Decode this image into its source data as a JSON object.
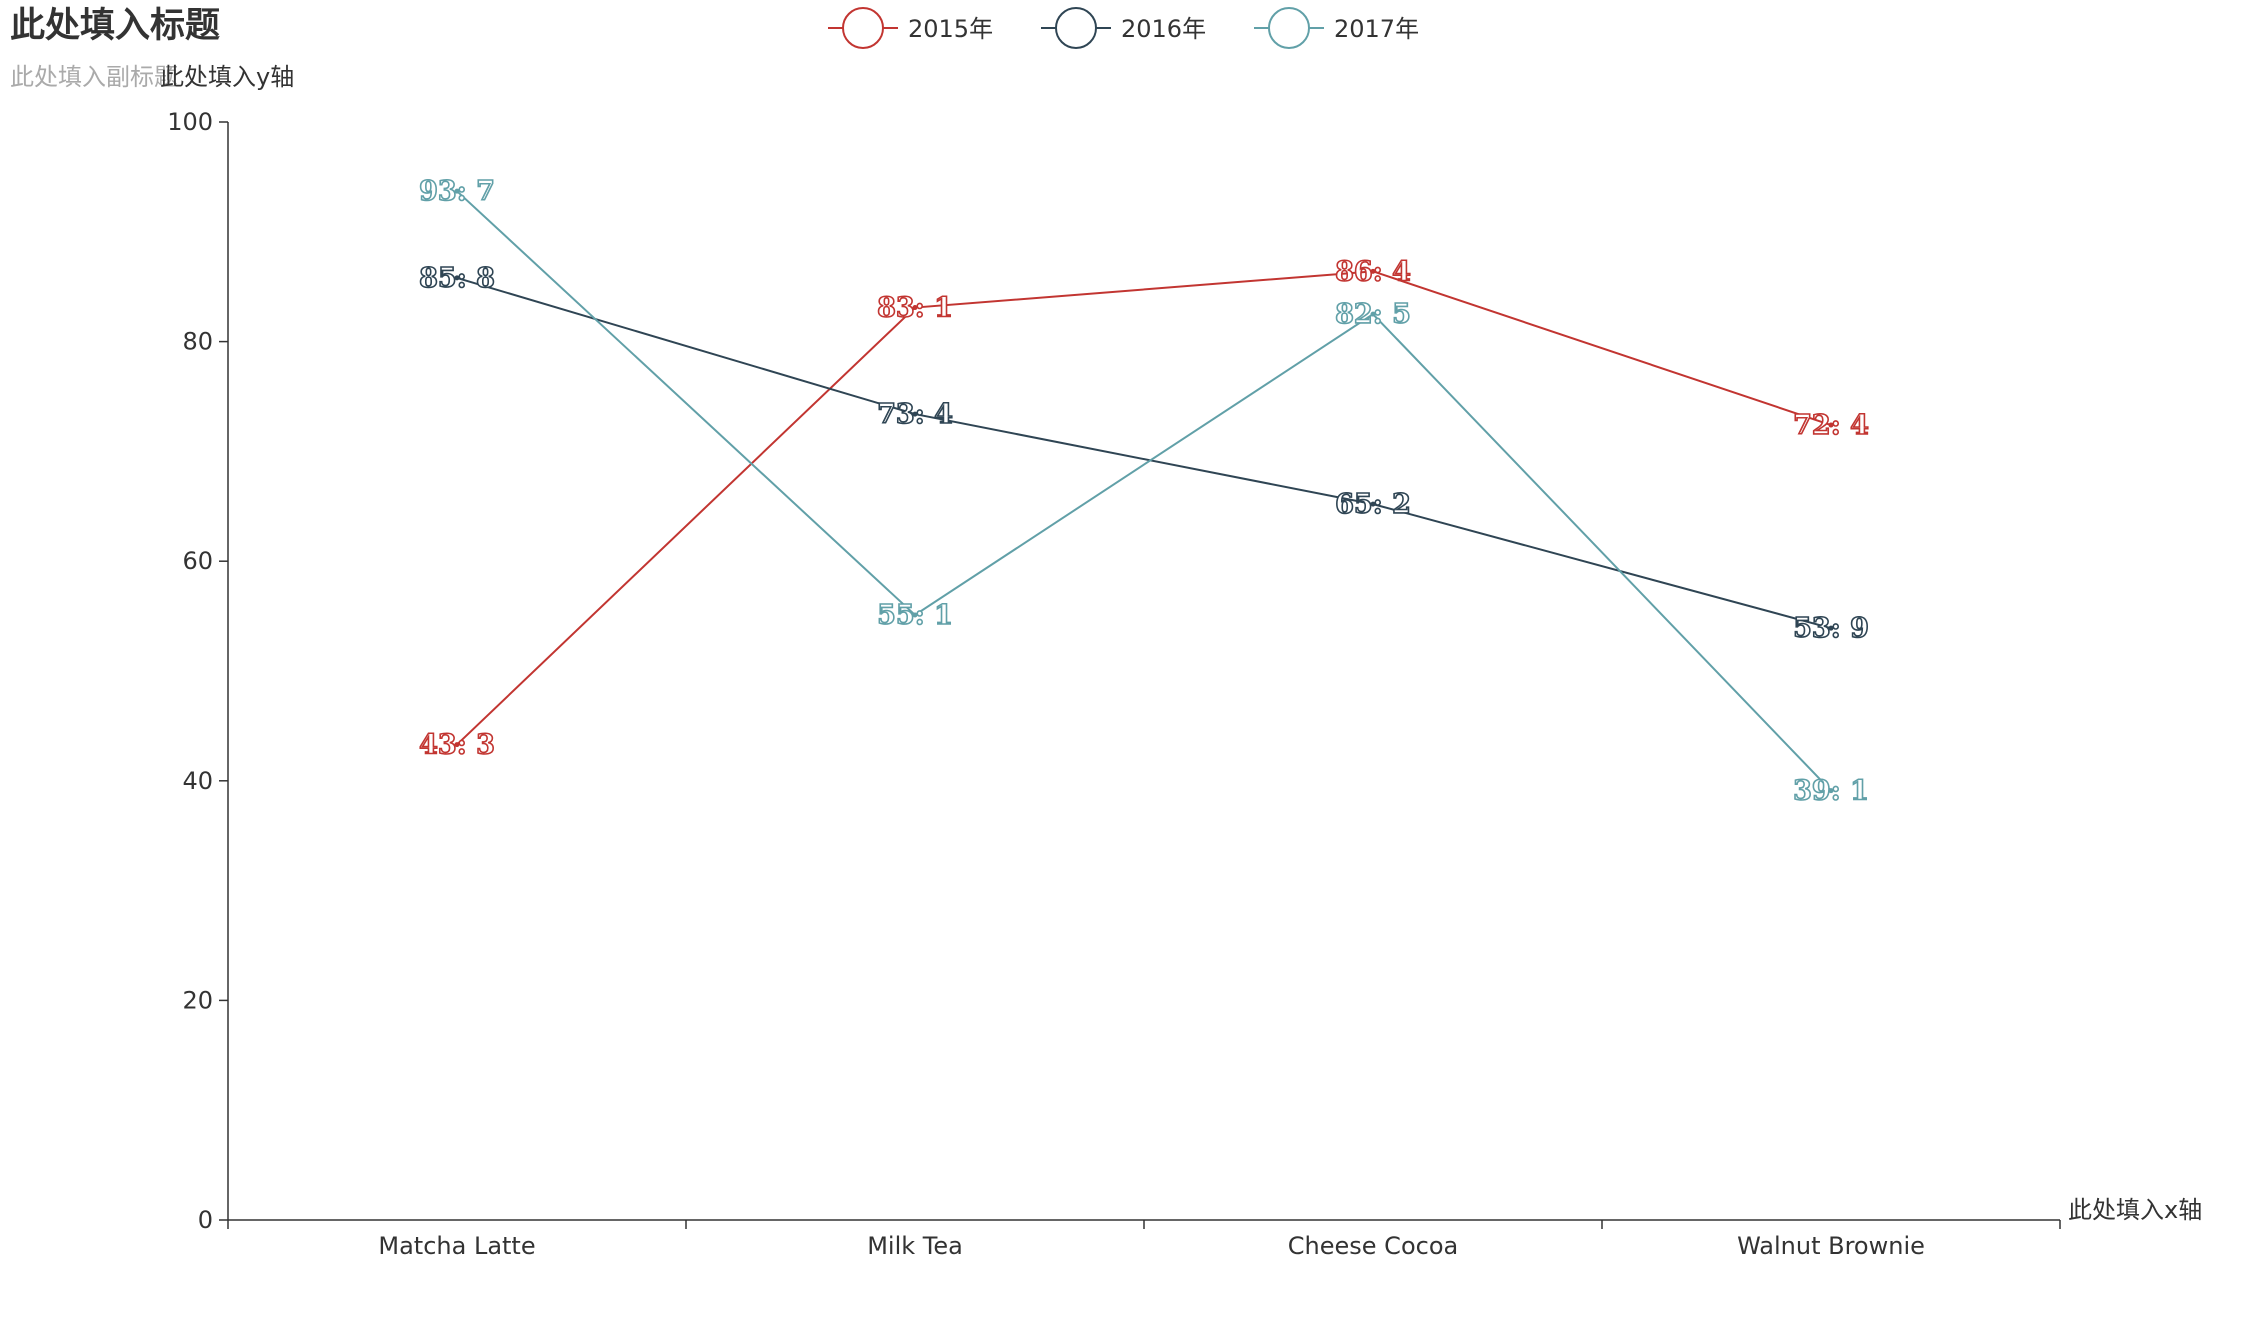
{
  "chart_data": {
    "type": "line",
    "title": "此处填入标题",
    "subtitle": "此处填入副标题",
    "xlabel": "此处填入x轴",
    "ylabel": "此处填入y轴",
    "categories": [
      "Matcha Latte",
      "Milk Tea",
      "Cheese Cocoa",
      "Walnut Brownie"
    ],
    "ylim": [
      0,
      100
    ],
    "yticks": [
      0,
      20,
      40,
      60,
      80,
      100
    ],
    "legend_position": "top-center",
    "grid": false,
    "series": [
      {
        "name": "2015年",
        "color": "#c23531",
        "values": [
          43.3,
          83.1,
          86.4,
          72.4
        ],
        "labels": [
          "43: 3",
          "83: 1",
          "86: 4",
          "72: 4"
        ]
      },
      {
        "name": "2016年",
        "color": "#2f4554",
        "values": [
          85.8,
          73.4,
          65.2,
          53.9
        ],
        "labels": [
          "85: 8",
          "73: 4",
          "65: 2",
          "53: 9"
        ]
      },
      {
        "name": "2017年",
        "color": "#61a0a8",
        "values": [
          93.7,
          55.1,
          82.5,
          39.1
        ],
        "labels": [
          "93: 7",
          "55: 1",
          "82: 5",
          "39: 1"
        ]
      }
    ]
  }
}
